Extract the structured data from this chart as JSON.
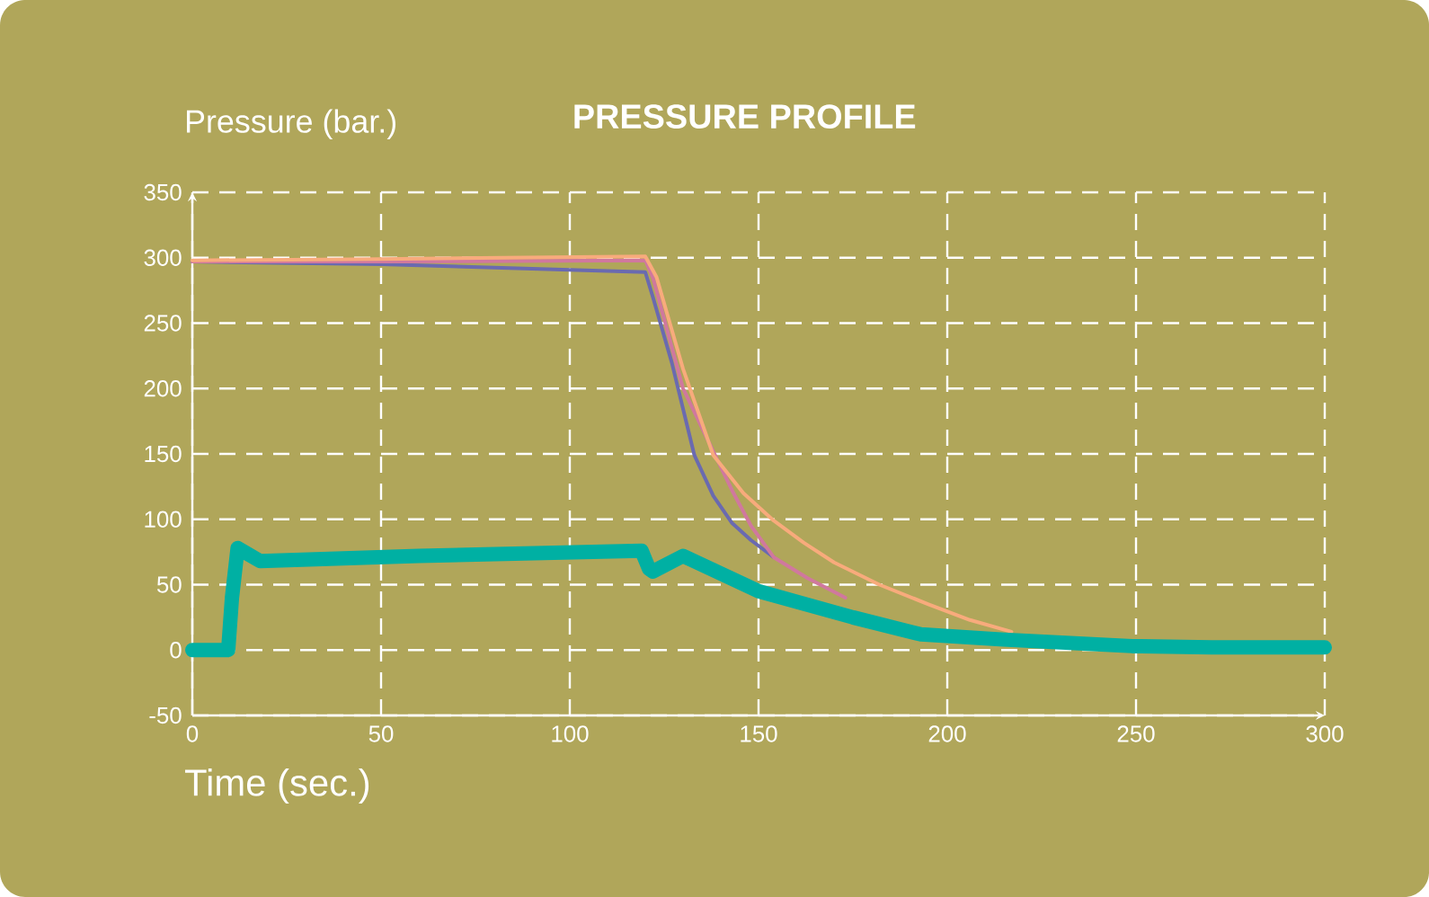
{
  "chart_data": {
    "type": "line",
    "title": "PRESSURE PROFILE",
    "ylabel": "Pressure (bar.)",
    "xlabel": "Time (sec.)",
    "xlim": [
      0,
      300
    ],
    "ylim": [
      -50,
      350
    ],
    "xticks": [
      0,
      50,
      100,
      150,
      200,
      250,
      300
    ],
    "yticks": [
      -50,
      0,
      50,
      100,
      150,
      200,
      250,
      300,
      350
    ],
    "grid": true,
    "series": [
      {
        "color": "#6a6ab0",
        "x": [
          0,
          50,
          120,
          122,
          127,
          133,
          138,
          143,
          148,
          154
        ],
        "values": [
          297,
          295,
          289,
          270,
          220,
          149,
          118,
          97,
          84,
          71
        ]
      },
      {
        "color": "#d0789e",
        "x": [
          0,
          50,
          120,
          122,
          130,
          137,
          143,
          148,
          154,
          163,
          173
        ],
        "values": [
          297,
          297,
          298,
          285,
          200,
          158,
          122,
          95,
          71,
          55,
          40
        ]
      },
      {
        "color": "#f8ab7c",
        "x": [
          0,
          50,
          120,
          123,
          130,
          138,
          146,
          154,
          162,
          170,
          182,
          195,
          206,
          217
        ],
        "values": [
          298,
          299,
          301,
          285,
          215,
          149,
          120,
          99,
          82,
          67,
          50,
          35,
          23,
          14
        ]
      },
      {
        "color": "#00b0a3",
        "x": [
          0,
          9.5,
          10.5,
          12,
          18,
          60,
          119,
          121,
          122,
          130,
          150,
          175,
          193,
          215,
          249,
          270,
          300
        ],
        "values": [
          0,
          0,
          40,
          78,
          68,
          72,
          76,
          62,
          60,
          72,
          45,
          25,
          12,
          8,
          3,
          2,
          2
        ]
      }
    ]
  }
}
